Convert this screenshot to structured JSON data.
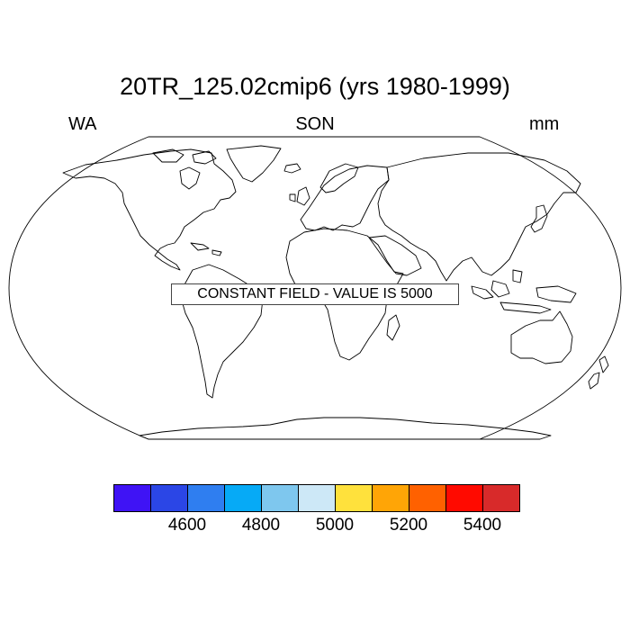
{
  "title": "20TR_125.02cmip6 (yrs 1980-1999)",
  "subtitle_left": "WA",
  "subtitle_center": "SON",
  "subtitle_right": "mm",
  "map": {
    "projection": "Robinson",
    "content": "continent outlines",
    "notice": "CONSTANT FIELD - VALUE IS 5000"
  },
  "colorbar": {
    "colors": [
      "#3f13f5",
      "#2b46e6",
      "#2f7ef0",
      "#06aaf6",
      "#7ec7ee",
      "#cde8f7",
      "#ffe13c",
      "#ffa506",
      "#ff6100",
      "#ff0a00",
      "#d82a2a"
    ],
    "tick_labels": [
      "4600",
      "4800",
      "5000",
      "5200",
      "5400"
    ]
  }
}
